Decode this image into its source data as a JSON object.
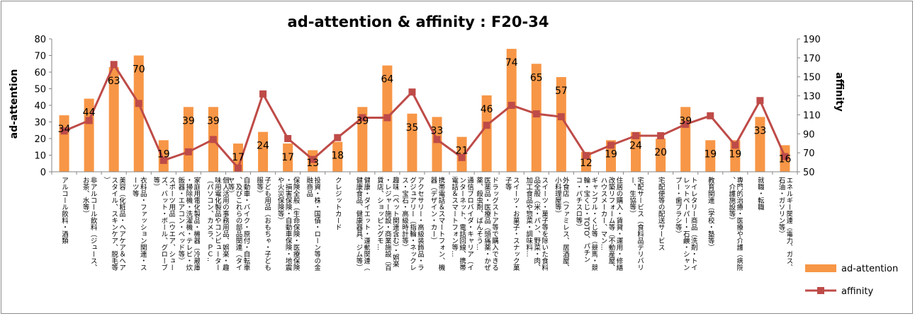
{
  "chart_data": {
    "type": "bar+line",
    "title": "ad-attention & affinity : F20-34",
    "ylabel_left": "ad-attention",
    "ylabel_right": "affinity",
    "ylim_left": [
      0,
      80
    ],
    "yticks_left": [
      0,
      10,
      20,
      30,
      40,
      50,
      60,
      70,
      80
    ],
    "ylim_right": [
      50,
      190
    ],
    "yticks_right": [
      50,
      70,
      90,
      110,
      130,
      150,
      170,
      190
    ],
    "grid": false,
    "legend_position": "right",
    "categories": [
      "アルコール飲料・酒類",
      "非アルコール飲料（ジュース、お茶、水等）",
      "美容（化粧品・ヘアケア＆ヘアスタイル、スキンケア、脱毛等）",
      "衣料品・ファッション関連・スーツ等",
      "スポーツ用品（ウエア、シューズ、バット・ボール、グローブ等）",
      "家庭用電化製品・機器（冷蔵庫・掃除機・洗濯機・テレビ・炊飯器・エアコン・ベッド等）",
      "個人活用の事務用品、娯楽・趣味用電化製品やコンピューター（パソコン、カメラ、ＰＣ...",
      "自動車・バイク・原付・自転車、及びこれらの部品関連（タイヤ等）",
      "子ども用品（おもちゃ・子ども服等）",
      "保険全般（生命保険・医療保険・損害保険・自動車保険・地震や火災保険等）",
      "投資・株・国債・ローン等の金融商品",
      "クレジットカード",
      "健康・ダイエット・運動関連（健康食品、健康器具、ジム等）",
      "趣味（ペット関連含む）・娯楽・レジャー施設・商業施設（百貨店、ショッピングモ...",
      "アクセサリー・高級装飾品・ラグジュアリー（指輪・ネックレス・宝石・高級時計等）",
      "携帯電話＆スマートフォン、機器（デザイン・カー）",
      "通信プロバイダ・キャリア（インターネット、電話回線、携帯電話＆スマートフォン等...",
      "ドラッグストア等で購入できる医薬品・医療品（頭痛薬・かぜ薬、殺虫剤、ばんそう...",
      "スイーツ・お菓子・スナック菓子等",
      "スイーツ・菓子等を除いた食料品全般（米・パン、野菜・肉、加工食品や惣菜・調味料...",
      "外食店（ファミレス、居酒屋、小料理屋等）",
      "ギャンブル・くじ等（競馬・競輪・宝くじ・TOTO、パチンコ・パチスロ等）",
      "住居の購入・賃貸・運用・修繕改築リフォーム等（不動産屋、ハウスメーカー、マン...",
      "宅配サービス（食料品デリバリー、生協等）",
      "宅配便等の配送サービス",
      "トイレタリー商品（洗剤・トイレットペーパー・石鹸・シャンプー・歯ブラシ等）",
      "教育関連（学校・塾等）",
      "専門的治療・医療や介護（病院、介護施設等）",
      "就職・転職",
      "エネルギー関連（電力、ガス、石油・ガソリン等）"
    ],
    "series": [
      {
        "name": "ad-attention",
        "type": "bar",
        "axis": "left",
        "color": "#f79646",
        "values": [
          34,
          44,
          63,
          70,
          19,
          39,
          39,
          17,
          24,
          17,
          13,
          18,
          39,
          64,
          35,
          33,
          21,
          46,
          74,
          65,
          57,
          12,
          19,
          24,
          20,
          39,
          19,
          19,
          33,
          16
        ]
      },
      {
        "name": "affinity",
        "type": "line",
        "axis": "right",
        "color": "#be4b48",
        "values": [
          93,
          104,
          163,
          122,
          62,
          71,
          84,
          54,
          132,
          85,
          63,
          86,
          107,
          107,
          134,
          84,
          65,
          99,
          120,
          111,
          108,
          67,
          78,
          88,
          88,
          100,
          109,
          78,
          125,
          66
        ]
      }
    ]
  }
}
